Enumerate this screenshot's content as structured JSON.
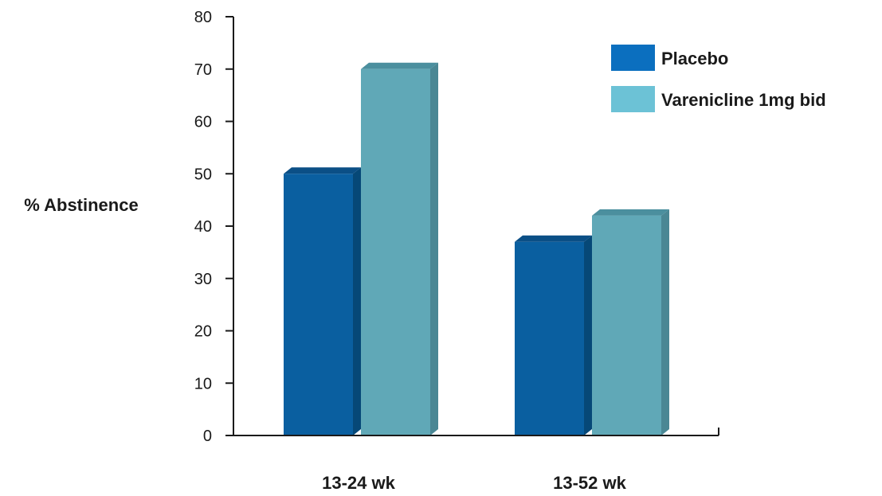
{
  "chart_data": {
    "type": "bar",
    "title": "",
    "xlabel": "",
    "ylabel": "% Abstinence",
    "ylim": [
      0,
      80
    ],
    "yticks": [
      0,
      10,
      20,
      30,
      40,
      50,
      60,
      70,
      80
    ],
    "categories": [
      "13-24 wk",
      "13-52 wk"
    ],
    "series": [
      {
        "name": "Placebo",
        "values": [
          50,
          37
        ],
        "color": "#0a5fa0",
        "top_color": "#0b4f86",
        "side_color": "#064877",
        "legend_color": "#0b6fbf"
      },
      {
        "name": "Varenicline 1mg bid",
        "values": [
          70,
          42
        ],
        "color": "#60a8b7",
        "top_color": "#4b8f9e",
        "side_color": "#4a8794",
        "legend_color": "#6cc2d6"
      }
    ],
    "legend_position": "top-right",
    "grid": false,
    "style": "3d-bar"
  }
}
